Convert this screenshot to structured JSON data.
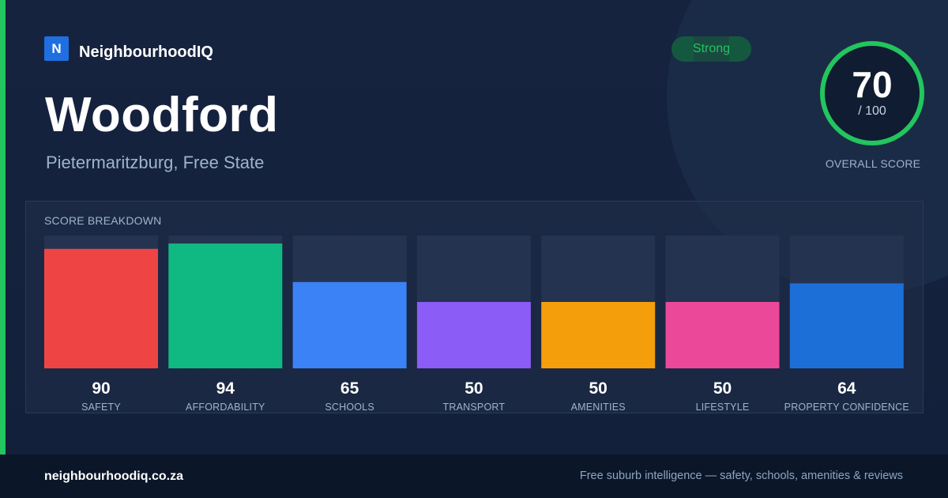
{
  "brand": {
    "logo_letter": "N",
    "name": "NeighbourhoodIQ"
  },
  "badge": {
    "label": "Strong"
  },
  "suburb": {
    "name": "Woodford",
    "location": "Pietermaritzburg, Free State"
  },
  "overall": {
    "score": "70",
    "max": "/ 100",
    "label": "OVERALL SCORE",
    "fraction": 0.7,
    "ring_color": "#22c55e",
    "track_color": "#1f3349"
  },
  "panel": {
    "title": "SCORE BREAKDOWN"
  },
  "colors": {
    "accent": "#22c55e",
    "track": "#243350"
  },
  "chart_data": {
    "type": "bar",
    "title": "SCORE BREAKDOWN",
    "ylim": [
      0,
      100
    ],
    "categories": [
      "SAFETY",
      "AFFORDABILITY",
      "SCHOOLS",
      "TRANSPORT",
      "AMENITIES",
      "LIFESTYLE",
      "PROPERTY CONFIDENCE"
    ],
    "values": [
      90,
      94,
      65,
      50,
      50,
      50,
      64
    ],
    "value_labels": [
      "90",
      "94",
      "65",
      "50",
      "50",
      "50",
      "64"
    ],
    "colors": [
      "#ef4444",
      "#10b981",
      "#3b82f6",
      "#8b5cf6",
      "#f59e0b",
      "#ec4899",
      "#1d6fd8"
    ]
  },
  "footer": {
    "url": "neighbourhoodiq.co.za",
    "tagline": "Free suburb intelligence — safety, schools, amenities & reviews"
  }
}
